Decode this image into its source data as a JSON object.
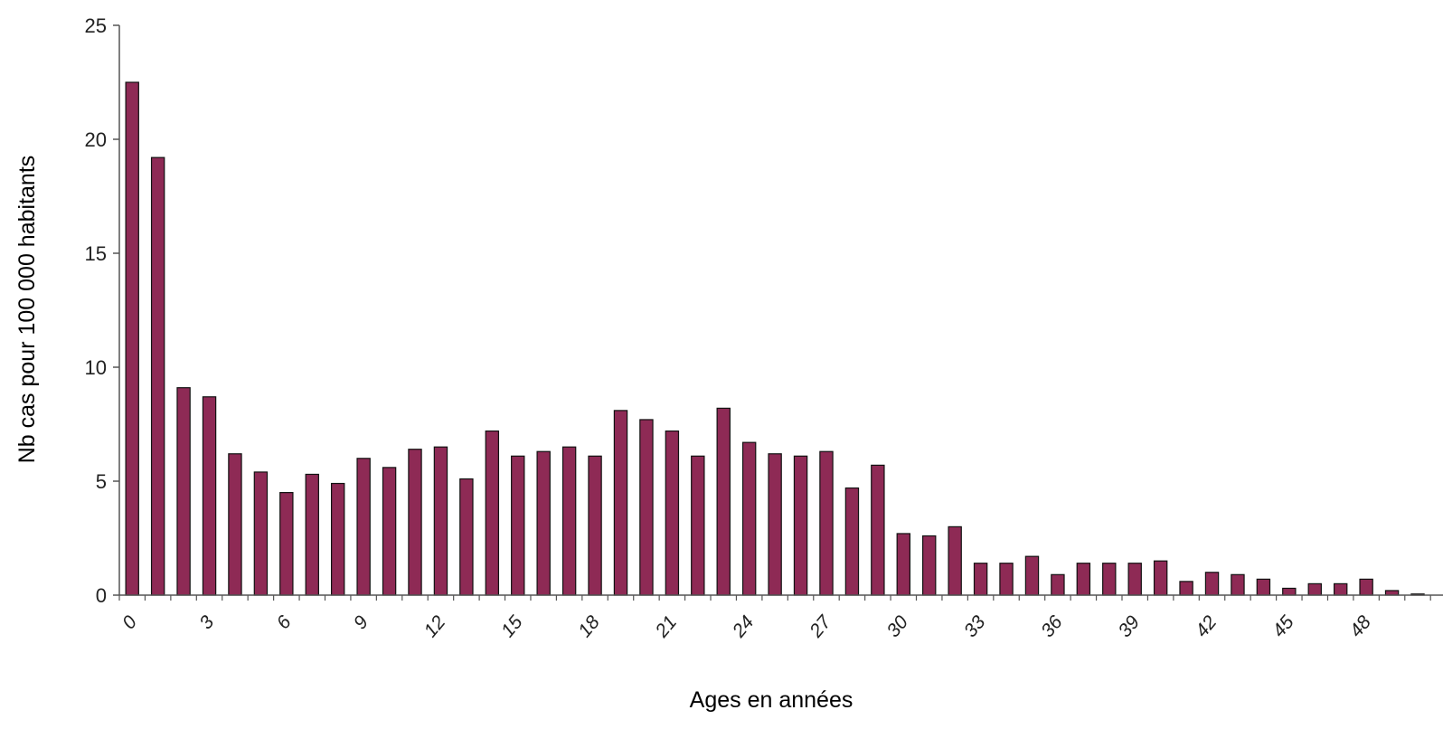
{
  "chart_data": {
    "type": "bar",
    "title": "",
    "xlabel": "Ages en années",
    "ylabel": "Nb cas pour 100 000 habitants",
    "ylim": [
      0,
      25
    ],
    "yticks": [
      "0",
      "5",
      "10",
      "15",
      "20",
      "25"
    ],
    "xtick_labels": [
      "0",
      "3",
      "6",
      "9",
      "12",
      "15",
      "18",
      "21",
      "24",
      "27",
      "30",
      "33",
      "36",
      "39",
      "42",
      "45",
      "48"
    ],
    "grid": false,
    "legend": "none",
    "bar_color": "#8e2a55",
    "x": [
      0,
      1,
      2,
      3,
      4,
      5,
      6,
      7,
      8,
      9,
      10,
      11,
      12,
      13,
      14,
      15,
      16,
      17,
      18,
      19,
      20,
      21,
      22,
      23,
      24,
      25,
      26,
      27,
      28,
      29,
      30,
      31,
      32,
      33,
      34,
      35,
      36,
      37,
      38,
      39,
      40,
      41,
      42,
      43,
      44,
      45,
      46,
      47,
      48,
      49,
      50
    ],
    "values": [
      22.5,
      19.2,
      9.1,
      8.7,
      6.2,
      5.4,
      4.5,
      5.3,
      4.9,
      6.0,
      5.6,
      6.4,
      6.5,
      5.1,
      7.2,
      6.1,
      6.3,
      6.5,
      6.1,
      8.1,
      7.7,
      7.2,
      6.1,
      8.2,
      6.7,
      6.2,
      6.1,
      6.3,
      4.7,
      5.7,
      2.7,
      2.6,
      3.0,
      1.4,
      1.4,
      1.7,
      0.9,
      1.4,
      1.4,
      1.4,
      1.5,
      0.6,
      1.0,
      0.9,
      0.7,
      0.3,
      0.5,
      0.5,
      0.7,
      0.2,
      0.05
    ]
  }
}
